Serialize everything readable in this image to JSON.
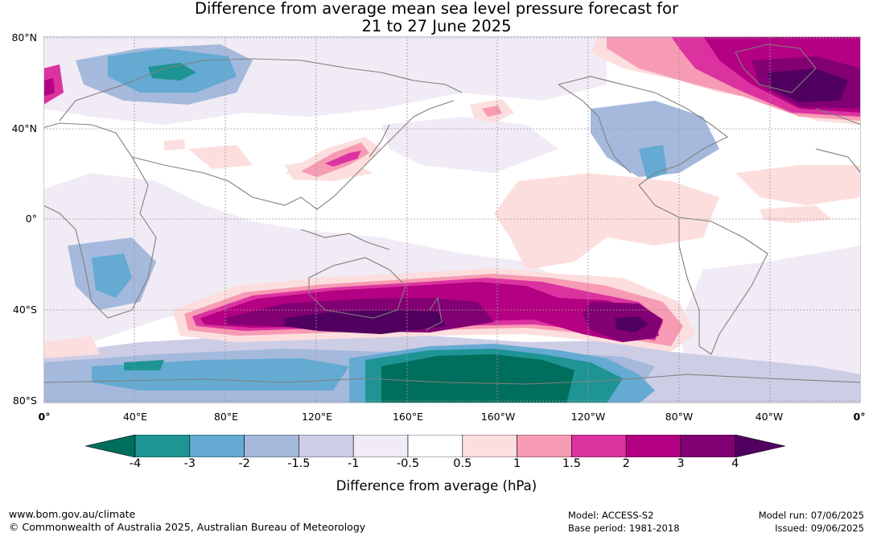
{
  "title_line1": "Difference from average mean sea level pressure forecast for",
  "title_line2": "21 to 27 June 2025",
  "lat_labels": [
    "80°N",
    "40°N",
    "0°",
    "40°S",
    "80°S"
  ],
  "lon_labels": [
    "0°",
    "40°E",
    "80°E",
    "120°E",
    "160°E",
    "160°W",
    "120°W",
    "80°W",
    "40°W",
    "0°"
  ],
  "colorbar": {
    "title": "Difference from average (hPa)",
    "ticks": [
      "-4",
      "-3",
      "-2",
      "-1.5",
      "-1",
      "-0.5",
      "0.5",
      "1",
      "1.5",
      "2",
      "3",
      "4"
    ],
    "colors": [
      "#006e5c",
      "#1e9494",
      "#64aad2",
      "#a5b9dc",
      "#cdcde6",
      "#f0ebf5",
      "#ffffff",
      "#fddede",
      "#f79bb4",
      "#dc32a0",
      "#b40082",
      "#820073",
      "#50005f"
    ]
  },
  "footer": {
    "url": "www.bom.gov.au/climate",
    "copyright": "© Commonwealth of Australia 2025, Australian Bureau of Meteorology",
    "model": "Model: ACCESS-S2",
    "base_period": "Base period: 1981-2018",
    "model_run": "Model run: 07/06/2025",
    "issued": "Issued: 09/06/2025"
  }
}
